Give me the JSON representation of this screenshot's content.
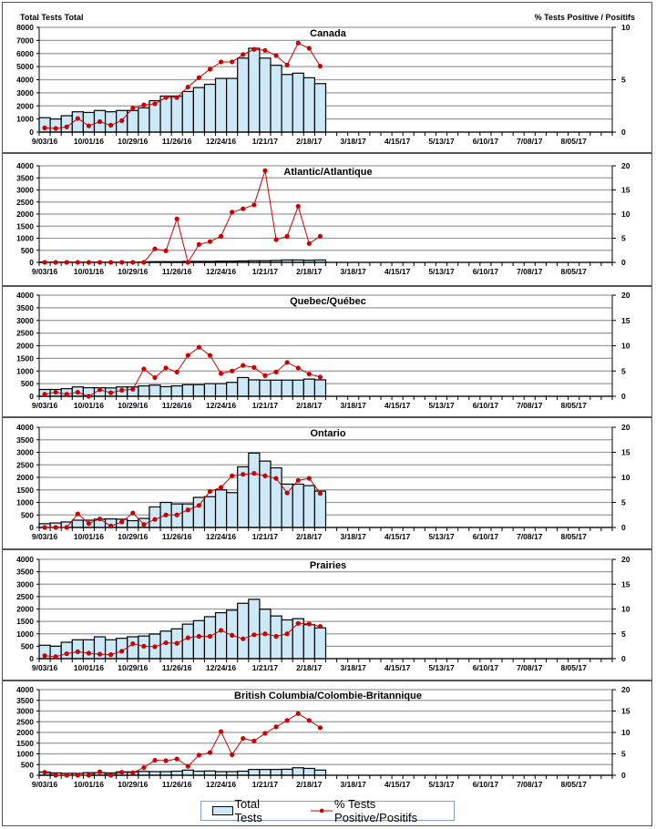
{
  "legend": {
    "bars_label": "Total Tests",
    "line_label": "% Tests Positive/Positifs"
  },
  "colors": {
    "bar_fill": "#cde9f8",
    "bar_stroke": "#000000",
    "line": "#cc0000"
  },
  "chart_data": [
    {
      "type": "bar",
      "title": "Canada",
      "ylabel_left": "Total Tests Total",
      "ylabel_right": "% Tests Positive / Positifs",
      "ylim": [
        0,
        8000
      ],
      "yticks": [
        0,
        1000,
        2000,
        3000,
        4000,
        5000,
        6000,
        7000,
        8000
      ],
      "y2lim": [
        0,
        10
      ],
      "y2ticks": [
        0,
        5,
        10
      ],
      "xtick_labels": [
        "9/03/16",
        "10/01/16",
        "10/29/16",
        "11/26/16",
        "12/24/16",
        "1/21/17",
        "2/18/17",
        "3/18/17",
        "4/15/17",
        "5/13/17",
        "6/10/17",
        "7/08/17",
        "8/05/17"
      ],
      "weeks_total": 52,
      "series": [
        {
          "name": "Total Tests",
          "axis": "left",
          "values": [
            1100,
            1000,
            1250,
            1550,
            1500,
            1650,
            1550,
            1650,
            1650,
            1850,
            2400,
            2750,
            2750,
            3100,
            3400,
            3650,
            4100,
            4100,
            5650,
            6400,
            5650,
            5100,
            4400,
            4500,
            4150,
            3700
          ]
        },
        {
          "name": "% Tests Positive/Positifs",
          "axis": "right",
          "values": [
            0.4,
            0.35,
            0.5,
            1.3,
            0.6,
            1.0,
            0.65,
            1.1,
            2.3,
            2.6,
            2.7,
            3.3,
            3.3,
            4.3,
            5.2,
            6.0,
            6.7,
            6.7,
            7.4,
            7.9,
            7.8,
            7.3,
            6.4,
            8.5,
            8.0,
            6.3
          ]
        }
      ]
    },
    {
      "type": "bar",
      "title": "Atlantic/Atlantique",
      "ylim": [
        0,
        4000
      ],
      "yticks": [
        0,
        500,
        1000,
        1500,
        2000,
        2500,
        3000,
        3500,
        4000
      ],
      "y2lim": [
        0,
        20
      ],
      "y2ticks": [
        0,
        5,
        10,
        15,
        20
      ],
      "xtick_labels": [
        "9/03/16",
        "10/01/16",
        "10/29/16",
        "11/26/16",
        "12/24/16",
        "1/21/17",
        "2/18/17",
        "3/18/17",
        "4/15/17",
        "5/13/17",
        "6/10/17",
        "7/08/17",
        "8/05/17"
      ],
      "weeks_total": 52,
      "series": [
        {
          "name": "Total Tests",
          "axis": "left",
          "values": [
            10,
            10,
            10,
            10,
            10,
            10,
            10,
            10,
            10,
            20,
            30,
            30,
            30,
            40,
            40,
            40,
            50,
            50,
            60,
            70,
            70,
            80,
            100,
            100,
            90,
            100
          ]
        },
        {
          "name": "% Tests Positive/Positifs",
          "axis": "right",
          "values": [
            0,
            0,
            0,
            0,
            0,
            0,
            0,
            0,
            0,
            0,
            2.8,
            2.4,
            9.0,
            0,
            3.7,
            4.3,
            5.4,
            10.4,
            11.1,
            11.9,
            19.0,
            4.7,
            5.4,
            11.6,
            3.9,
            5.4
          ]
        }
      ]
    },
    {
      "type": "bar",
      "title": "Quebec/Québec",
      "ylim": [
        0,
        4000
      ],
      "yticks": [
        0,
        500,
        1000,
        1500,
        2000,
        2500,
        3000,
        3500,
        4000
      ],
      "y2lim": [
        0,
        20
      ],
      "y2ticks": [
        0,
        5,
        10,
        15,
        20
      ],
      "xtick_labels": [
        "9/03/16",
        "10/01/16",
        "10/29/16",
        "11/26/16",
        "12/24/16",
        "1/21/17",
        "2/18/17",
        "3/18/17",
        "4/15/17",
        "5/13/17",
        "6/10/17",
        "7/08/17",
        "8/05/17"
      ],
      "weeks_total": 52,
      "series": [
        {
          "name": "Total Tests",
          "axis": "left",
          "values": [
            270,
            270,
            300,
            370,
            340,
            340,
            330,
            370,
            370,
            410,
            440,
            380,
            410,
            460,
            460,
            500,
            500,
            550,
            740,
            650,
            640,
            640,
            640,
            640,
            680,
            650
          ]
        },
        {
          "name": "% Tests Positive/Positifs",
          "axis": "right",
          "values": [
            0.4,
            0.8,
            0.4,
            0.8,
            0,
            1.3,
            0.7,
            1.2,
            1.4,
            5.4,
            3.7,
            5.6,
            4.8,
            8.1,
            9.7,
            8.1,
            4.5,
            5.0,
            6.1,
            5.7,
            4.1,
            4.8,
            6.7,
            5.6,
            4.4,
            3.8
          ]
        }
      ]
    },
    {
      "type": "bar",
      "title": "Ontario",
      "ylim": [
        0,
        4000
      ],
      "yticks": [
        0,
        500,
        1000,
        1500,
        2000,
        2500,
        3000,
        3500,
        4000
      ],
      "y2lim": [
        0,
        20
      ],
      "y2ticks": [
        0,
        5,
        10,
        15,
        20
      ],
      "xtick_labels": [
        "9/03/16",
        "10/01/16",
        "10/29/16",
        "11/26/16",
        "12/24/16",
        "1/21/17",
        "2/18/17",
        "3/18/17",
        "4/15/17",
        "5/13/17",
        "6/10/17",
        "7/08/17",
        "8/05/17"
      ],
      "weeks_total": 52,
      "series": [
        {
          "name": "Total Tests",
          "axis": "left",
          "values": [
            150,
            180,
            220,
            290,
            290,
            330,
            340,
            330,
            270,
            360,
            820,
            1000,
            940,
            940,
            1200,
            1230,
            1500,
            1390,
            2420,
            2970,
            2650,
            2380,
            1730,
            1730,
            1670,
            1450
          ]
        },
        {
          "name": "% Tests Positive/Positifs",
          "axis": "right",
          "values": [
            0,
            0,
            0,
            2.7,
            0.8,
            1.7,
            0.3,
            1.1,
            2.9,
            0.6,
            1.6,
            2.5,
            2.5,
            3.5,
            4.4,
            7.2,
            8.0,
            10.3,
            10.6,
            10.8,
            10.3,
            9.8,
            6.9,
            9.4,
            9.8,
            6.8
          ]
        }
      ]
    },
    {
      "type": "bar",
      "title": "Prairies",
      "ylim": [
        0,
        4000
      ],
      "yticks": [
        0,
        500,
        1000,
        1500,
        2000,
        2500,
        3000,
        3500,
        4000
      ],
      "y2lim": [
        0,
        20
      ],
      "y2ticks": [
        0,
        5,
        10,
        15,
        20
      ],
      "xtick_labels": [
        "9/03/16",
        "10/01/16",
        "10/29/16",
        "11/26/16",
        "12/24/16",
        "1/21/17",
        "2/18/17",
        "3/18/17",
        "4/15/17",
        "5/13/17",
        "6/10/17",
        "7/08/17",
        "8/05/17"
      ],
      "weeks_total": 52,
      "series": [
        {
          "name": "Total Tests",
          "axis": "left",
          "values": [
            540,
            500,
            660,
            760,
            760,
            880,
            760,
            820,
            880,
            910,
            990,
            1110,
            1200,
            1390,
            1530,
            1690,
            1850,
            1950,
            2230,
            2390,
            1990,
            1720,
            1560,
            1610,
            1370,
            1240
          ]
        },
        {
          "name": "% Tests Positive/Positifs",
          "axis": "right",
          "values": [
            0.6,
            0.4,
            1.0,
            1.4,
            1.1,
            0.9,
            0.8,
            1.5,
            3.0,
            2.5,
            2.4,
            3.2,
            3.1,
            4.2,
            4.5,
            4.5,
            5.7,
            4.7,
            4.0,
            4.8,
            5.0,
            4.5,
            5.0,
            7.1,
            7.0,
            6.5
          ]
        }
      ]
    },
    {
      "type": "bar",
      "title": "British Columbia/Colombie-Britannique",
      "ylim": [
        0,
        4000
      ],
      "yticks": [
        0,
        500,
        1000,
        1500,
        2000,
        2500,
        3000,
        3500,
        4000
      ],
      "y2lim": [
        0,
        20
      ],
      "y2ticks": [
        0,
        5,
        10,
        15,
        20
      ],
      "xtick_labels": [
        "9/03/16",
        "10/01/16",
        "10/29/16",
        "11/26/16",
        "12/24/16",
        "1/21/17",
        "2/18/17",
        "3/18/17",
        "4/15/17",
        "5/13/17",
        "6/10/17",
        "7/08/17",
        "8/05/17"
      ],
      "weeks_total": 52,
      "series": [
        {
          "name": "Total Tests",
          "axis": "left",
          "values": [
            150,
            110,
            90,
            90,
            120,
            120,
            110,
            160,
            160,
            180,
            170,
            170,
            190,
            240,
            190,
            200,
            170,
            170,
            190,
            270,
            270,
            270,
            280,
            350,
            320,
            240
          ]
        },
        {
          "name": "% Tests Positive/Positifs",
          "axis": "right",
          "values": [
            0.7,
            0,
            0,
            0,
            0,
            0.8,
            0,
            0.7,
            0.6,
            1.8,
            3.5,
            3.4,
            3.8,
            2.1,
            4.7,
            5.3,
            10.2,
            4.8,
            8.6,
            8.0,
            9.8,
            11.3,
            12.8,
            14.4,
            12.8,
            11.1
          ]
        }
      ]
    }
  ]
}
